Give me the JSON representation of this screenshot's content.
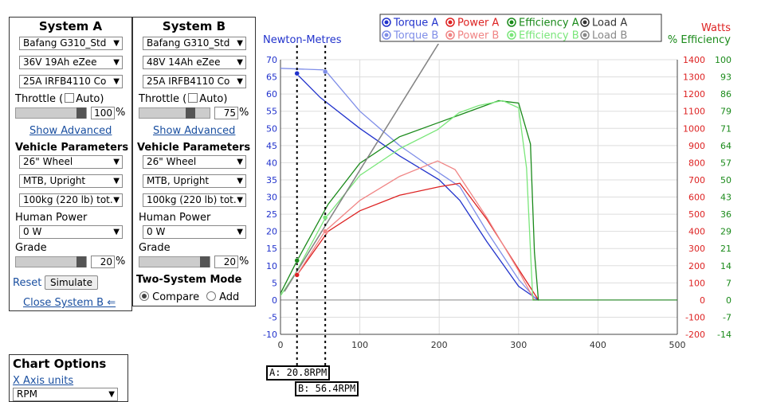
{
  "systemA": {
    "title": "System A",
    "motor": "Bafang G310_Std",
    "battery": "36V 19Ah eZee",
    "controller": "25A IRFB4110 Co",
    "throttle_label": "Throttle (",
    "auto_label": "Auto)",
    "throttle_value": "100",
    "throttle_fraction": 1.0,
    "show_advanced": "Show Advanced",
    "vehicle_params": "Vehicle Parameters",
    "wheel": "26\"  Wheel",
    "bike_type": "MTB, Upright",
    "weight": "100kg (220 lb) tot.",
    "human_power_label": "Human Power",
    "human_power": "0 W",
    "grade_label": "Grade",
    "grade_value": "20",
    "grade_fraction": 1.0,
    "reset": "Reset",
    "simulate": "Simulate",
    "close": "Close System B ⇐"
  },
  "systemB": {
    "title": "System B",
    "motor": "Bafang G310_Std",
    "battery": "48V 14Ah eZee",
    "controller": "25A IRFB4110 Co",
    "throttle_label": "Throttle (",
    "auto_label": "Auto)",
    "throttle_value": "75",
    "throttle_fraction": 0.75,
    "show_advanced": "Show Advanced",
    "vehicle_params": "Vehicle Parameters",
    "wheel": "26\"  Wheel",
    "bike_type": "MTB, Upright",
    "weight": "100kg (220 lb) tot.",
    "human_power_label": "Human Power",
    "human_power": "0 W",
    "grade_label": "Grade",
    "grade_value": "20",
    "grade_fraction": 1.0,
    "two_system_mode": "Two-System Mode",
    "compare": "Compare",
    "add": "Add"
  },
  "chart_options": {
    "title": "Chart Options",
    "x_axis_units_label": "X Axis units",
    "x_axis_units": "RPM"
  },
  "pct": "%",
  "colors": {
    "torqueA": "#2233cc",
    "torqueB": "#7f8ee8",
    "powerA": "#dd2222",
    "powerB": "#f08585",
    "effA": "#1a8a1a",
    "effB": "#7ae67a",
    "loadA": "#333333",
    "loadB": "#888888"
  },
  "chart_data": {
    "type": "line",
    "xlim": [
      0,
      500
    ],
    "ylim_left": [
      -10,
      70
    ],
    "ylim_watts": [
      -200,
      1400
    ],
    "ylim_eff": [
      -14,
      100
    ],
    "left_label": "Newton-Metres",
    "right_label_watts": "Watts",
    "right_label_eff": "% Efficiency",
    "x_ticks": [
      "0",
      "100",
      "200",
      "300",
      "400",
      "500"
    ],
    "left_ticks": [
      "-10",
      "-5",
      "0",
      "5",
      "10",
      "15",
      "20",
      "25",
      "30",
      "35",
      "40",
      "45",
      "50",
      "55",
      "60",
      "65",
      "70"
    ],
    "watts_ticks": [
      "-200",
      "-100",
      "0",
      "100",
      "200",
      "300",
      "400",
      "500",
      "600",
      "700",
      "800",
      "900",
      "1000",
      "1100",
      "1200",
      "1300",
      "1400"
    ],
    "eff_ticks": [
      "-14",
      "-7",
      "0",
      "7",
      "14",
      "21",
      "29",
      "36",
      "43",
      "50",
      "57",
      "64",
      "71",
      "79",
      "86",
      "93",
      "100"
    ],
    "legend": [
      {
        "name": "Torque A",
        "key": "torqueA"
      },
      {
        "name": "Power A",
        "key": "powerA"
      },
      {
        "name": "Efficiency A",
        "key": "effA"
      },
      {
        "name": "Load A",
        "key": "loadA"
      },
      {
        "name": "Torque B",
        "key": "torqueB"
      },
      {
        "name": "Power B",
        "key": "powerB"
      },
      {
        "name": "Efficiency B",
        "key": "effB"
      },
      {
        "name": "Load B",
        "key": "loadB"
      }
    ],
    "series": [
      {
        "key": "torqueA",
        "axis": "left",
        "x": [
          20,
          50,
          100,
          150,
          200,
          226,
          260,
          300,
          325
        ],
        "y": [
          66,
          59,
          50,
          42,
          35,
          29,
          17,
          4,
          0
        ]
      },
      {
        "key": "torqueB",
        "axis": "left",
        "x": [
          0,
          56,
          100,
          150,
          200,
          226,
          260,
          300,
          323
        ],
        "y": [
          67.5,
          67,
          55,
          45,
          37,
          33,
          20,
          6,
          0
        ]
      },
      {
        "key": "powerA",
        "axis": "watts",
        "x": [
          20,
          60,
          100,
          150,
          200,
          226,
          260,
          300,
          325
        ],
        "y": [
          140,
          400,
          520,
          610,
          660,
          680,
          470,
          180,
          0
        ]
      },
      {
        "key": "powerB",
        "axis": "watts",
        "x": [
          20,
          56,
          100,
          150,
          198,
          220,
          260,
          300,
          320
        ],
        "y": [
          140,
          400,
          580,
          720,
          810,
          760,
          480,
          170,
          0
        ]
      },
      {
        "key": "effA",
        "axis": "eff",
        "x": [
          0,
          20,
          60,
          100,
          150,
          200,
          225,
          250,
          275,
          300,
          315,
          320,
          325
        ],
        "y": [
          3,
          16,
          40,
          57,
          68,
          74,
          77,
          80,
          83,
          82,
          65,
          20,
          0
        ]
      },
      {
        "key": "effB",
        "axis": "eff",
        "x": [
          0,
          20,
          56,
          100,
          150,
          198,
          225,
          250,
          280,
          300,
          310,
          318
        ],
        "y": [
          2,
          12,
          34,
          52,
          63,
          71,
          78,
          81,
          83,
          80,
          55,
          0
        ]
      },
      {
        "key": "loadA",
        "axis": "left",
        "x": [
          5,
          200
        ],
        "y": [
          2.5,
          75
        ]
      },
      {
        "key": "loadB",
        "axis": "left",
        "x": [
          5,
          200
        ],
        "y": [
          2.5,
          75
        ]
      }
    ],
    "markers": [
      {
        "key": "torqueA",
        "x": 20.8,
        "y": 66
      },
      {
        "key": "torqueB",
        "x": 56.4,
        "y": 66.5
      },
      {
        "key": "powerA",
        "x": 20.8,
        "y": 7.3,
        "axis": "left"
      },
      {
        "key": "powerB",
        "x": 56.4,
        "y": 20,
        "axis": "left"
      },
      {
        "key": "effA",
        "x": 20.8,
        "y": 11.5,
        "axis": "left"
      },
      {
        "key": "effB",
        "x": 56.4,
        "y": 24,
        "axis": "left"
      }
    ],
    "cursorA": {
      "x": 20.8,
      "label": "A: 20.8RPM"
    },
    "cursorB": {
      "x": 56.4,
      "label": "B: 56.4RPM"
    }
  }
}
